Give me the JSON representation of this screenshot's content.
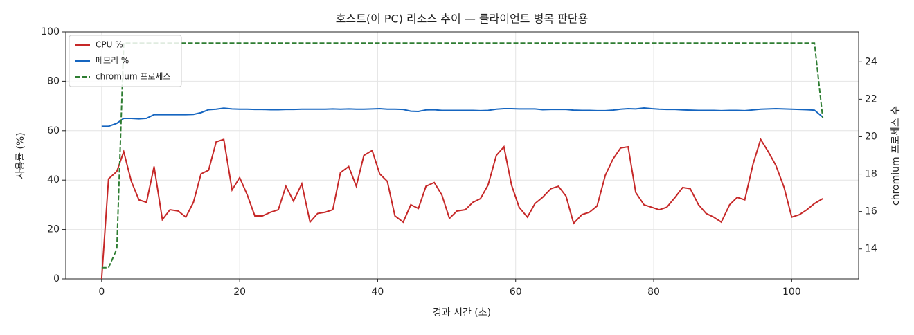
{
  "chart_data": {
    "type": "line",
    "title": "호스트(이 PC) 리소스 추이 — 클라이언트 병목 판단용",
    "x_label": "경과 시간 (초)",
    "y_label": "사용률 (%)",
    "y2_label": "chromium 프로세스 수",
    "x": [
      0,
      1.0,
      2.2,
      3.2,
      4.3,
      5.4,
      6.5,
      7.6,
      8.8,
      9.9,
      11.1,
      12.2,
      13.3,
      14.4,
      15.5,
      16.6,
      17.7,
      18.9,
      20.0,
      21.1,
      22.2,
      23.3,
      24.5,
      25.6,
      26.7,
      27.8,
      29.0,
      30.2,
      31.3,
      32.4,
      33.5,
      34.6,
      35.8,
      36.9,
      38.0,
      39.2,
      40.3,
      41.4,
      42.5,
      43.7,
      44.8,
      45.9,
      47.0,
      48.2,
      49.3,
      50.4,
      51.5,
      52.7,
      53.8,
      54.9,
      56.0,
      57.2,
      58.3,
      59.4,
      60.5,
      61.7,
      62.8,
      63.9,
      65.1,
      66.2,
      67.3,
      68.4,
      69.6,
      70.7,
      71.8,
      73.0,
      74.1,
      75.2,
      76.3,
      77.4,
      78.6,
      79.7,
      80.8,
      81.9,
      83.1,
      84.2,
      85.3,
      86.5,
      87.6,
      88.7,
      89.8,
      91.0,
      92.1,
      93.2,
      94.4,
      95.5,
      96.6,
      97.7,
      98.9,
      100.0,
      101.1,
      102.2,
      103.3,
      104.5
    ],
    "series": [
      {
        "name": "CPU %",
        "color": "#c62828",
        "values": [
          0,
          40.5,
          43.5,
          51.5,
          39.5,
          32,
          31,
          45.5,
          24,
          28,
          27.5,
          25,
          31,
          42.5,
          44,
          55.5,
          56.5,
          36,
          41,
          34,
          25.5,
          25.5,
          27,
          28,
          37.5,
          31.5,
          38.5,
          23,
          26.5,
          27,
          28,
          43,
          45.5,
          37.5,
          50,
          52,
          42.5,
          39.5,
          25.5,
          23,
          30,
          28.5,
          37.5,
          39,
          34,
          24.5,
          27.5,
          28,
          31,
          32.5,
          38,
          50,
          53.5,
          38,
          29,
          25,
          30.5,
          33,
          36.5,
          37.5,
          33.5,
          22.5,
          26,
          27,
          29.5,
          42,
          48.5,
          53,
          53.5,
          35,
          30,
          29,
          28,
          29,
          33,
          37,
          36.5,
          30,
          26.5,
          25,
          23,
          30,
          33,
          32,
          46.5,
          56.5,
          51.5,
          46,
          37,
          25,
          26,
          28,
          30.5,
          32.5
        ]
      },
      {
        "name": "메모리 %",
        "color": "#1565c0",
        "values": [
          61.8,
          61.8,
          63,
          65,
          65,
          64.8,
          65,
          66.5,
          66.5,
          66.5,
          66.5,
          66.5,
          66.6,
          67.3,
          68.5,
          68.7,
          69.1,
          68.8,
          68.7,
          68.7,
          68.6,
          68.6,
          68.5,
          68.5,
          68.6,
          68.6,
          68.7,
          68.7,
          68.7,
          68.7,
          68.8,
          68.7,
          68.8,
          68.7,
          68.7,
          68.8,
          68.9,
          68.7,
          68.7,
          68.6,
          67.9,
          67.8,
          68.4,
          68.5,
          68.2,
          68.2,
          68.2,
          68.2,
          68.2,
          68.1,
          68.2,
          68.7,
          68.9,
          68.9,
          68.8,
          68.8,
          68.8,
          68.5,
          68.6,
          68.6,
          68.6,
          68.3,
          68.2,
          68.2,
          68.1,
          68.1,
          68.3,
          68.7,
          68.9,
          68.8,
          69.2,
          68.9,
          68.7,
          68.6,
          68.6,
          68.4,
          68.3,
          68.2,
          68.2,
          68.2,
          68.1,
          68.2,
          68.2,
          68.1,
          68.4,
          68.7,
          68.8,
          68.9,
          68.8,
          68.7,
          68.6,
          68.5,
          68.3,
          65.5
        ]
      },
      {
        "name": "chromium 프로세스",
        "color": "#2e7d32",
        "dashed": true,
        "axis": "y2",
        "values": [
          13,
          13,
          14,
          25,
          25,
          25,
          25,
          25,
          25,
          25,
          25,
          25,
          25,
          25,
          25,
          25,
          25,
          25,
          25,
          25,
          25,
          25,
          25,
          25,
          25,
          25,
          25,
          25,
          25,
          25,
          25,
          25,
          25,
          25,
          25,
          25,
          25,
          25,
          25,
          25,
          25,
          25,
          25,
          25,
          25,
          25,
          25,
          25,
          25,
          25,
          25,
          25,
          25,
          25,
          25,
          25,
          25,
          25,
          25,
          25,
          25,
          25,
          25,
          25,
          25,
          25,
          25,
          25,
          25,
          25,
          25,
          25,
          25,
          25,
          25,
          25,
          25,
          25,
          25,
          25,
          25,
          25,
          25,
          25,
          25,
          25,
          25,
          25,
          25,
          25,
          25,
          25,
          25,
          21
        ]
      }
    ],
    "xlim": [
      -5.2,
      109.7
    ],
    "ylim": [
      0,
      100
    ],
    "y2lim": [
      12.4,
      25.6
    ],
    "xticks": [
      0,
      20,
      40,
      60,
      80,
      100
    ],
    "yticks": [
      0,
      20,
      40,
      60,
      80,
      100
    ],
    "y2ticks": [
      14,
      16,
      18,
      20,
      22,
      24
    ],
    "grid": true,
    "legend": "upper left"
  }
}
